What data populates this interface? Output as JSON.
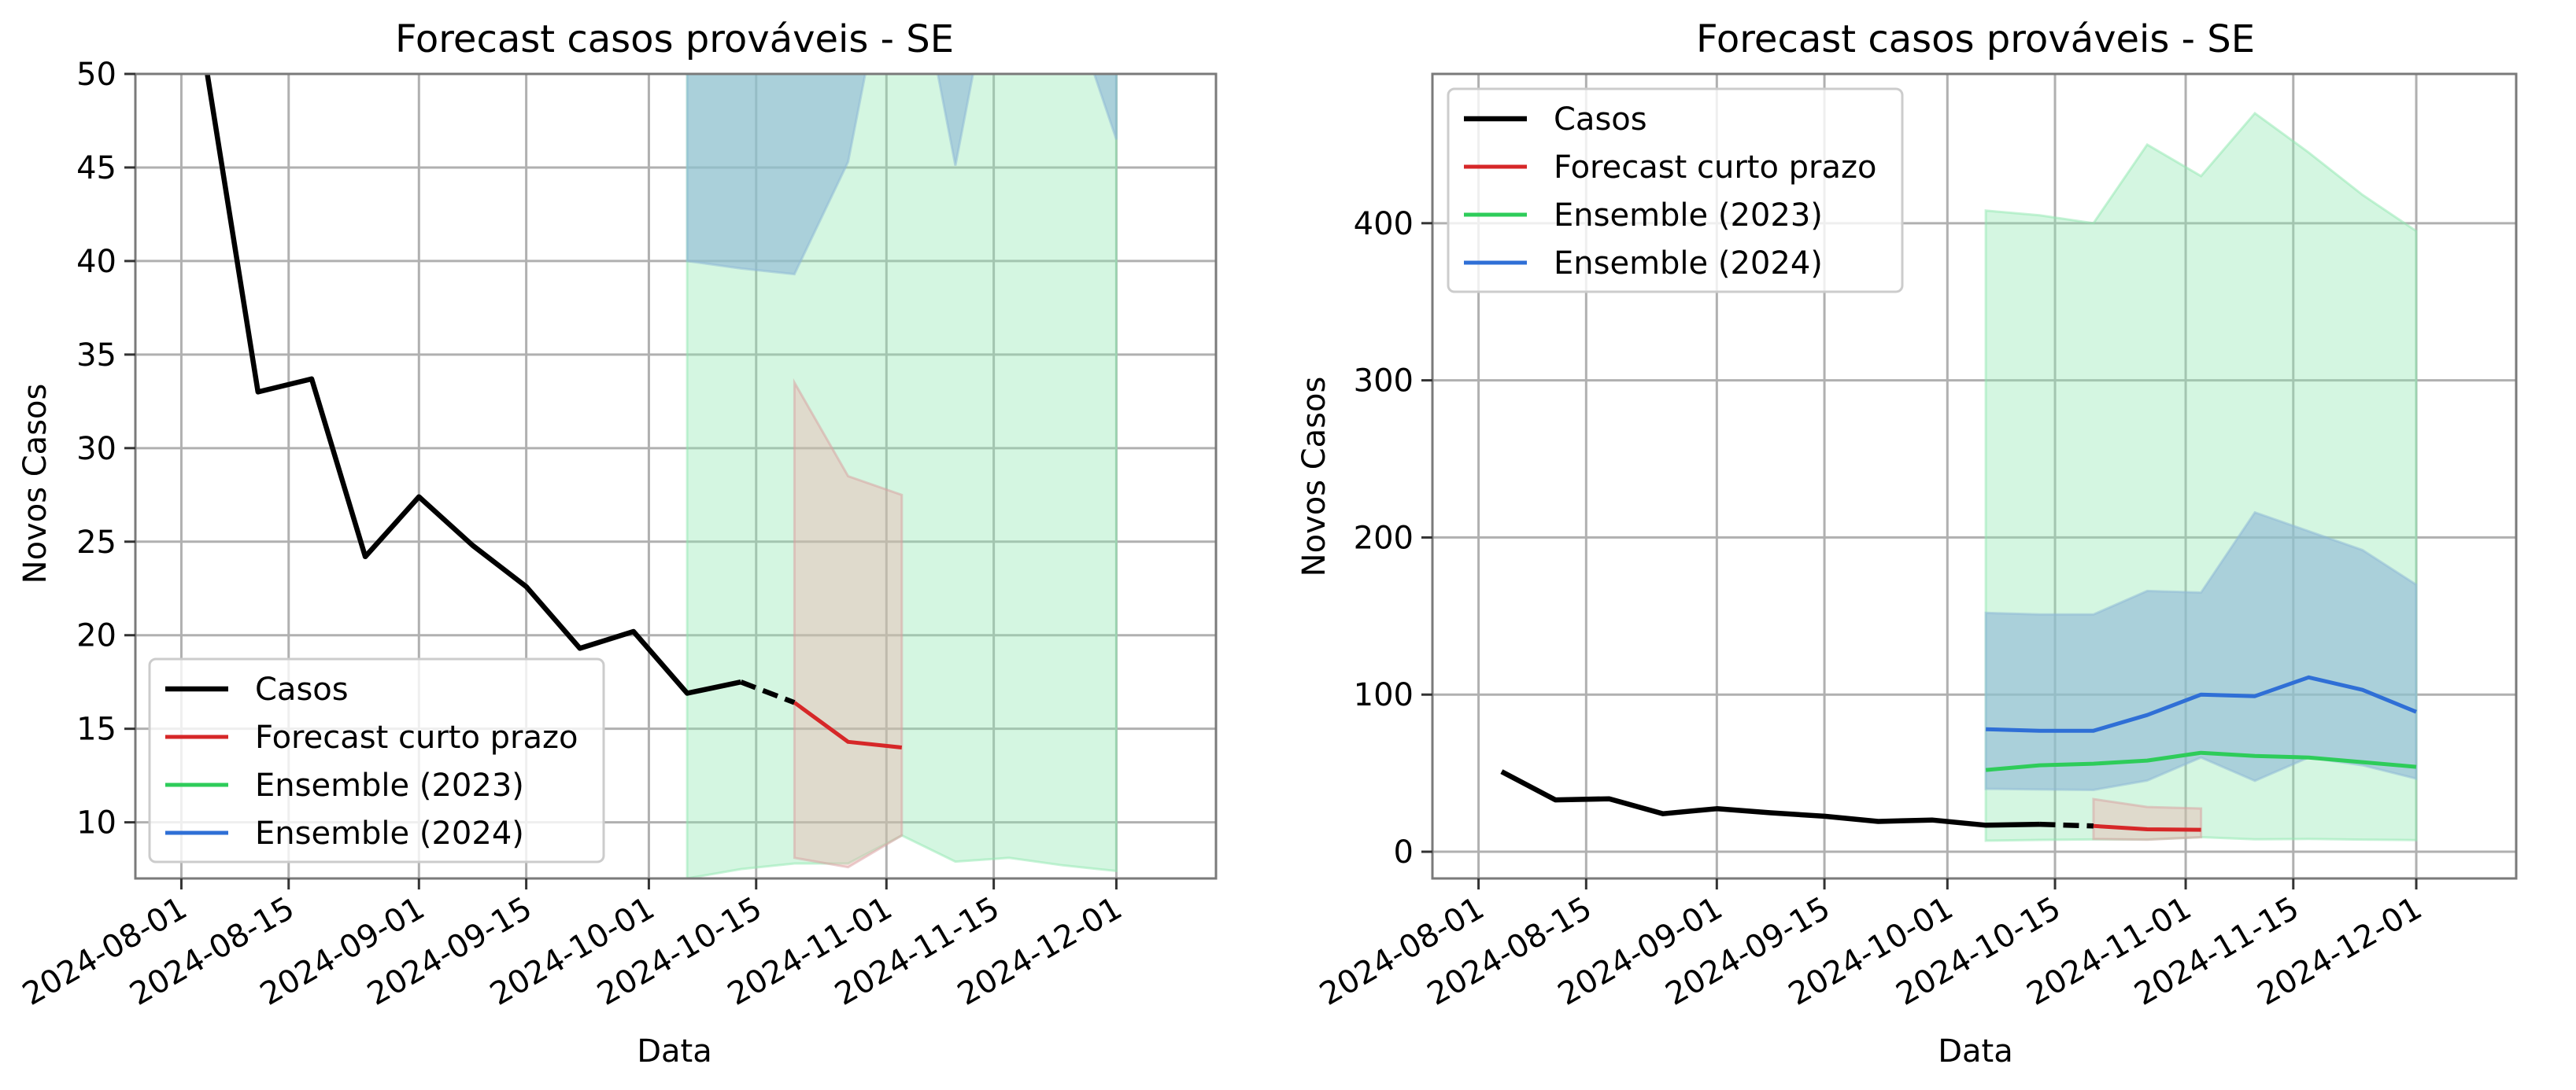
{
  "colors": {
    "casos": "#000000",
    "forecast": "#d62728",
    "ensemble2023": "#2ecc5a",
    "ensemble2024": "#2f6fd6",
    "band2023": "#8fe8b0",
    "band2024": "#8db7d6",
    "bandForecast": "#f4a6a6"
  },
  "chart_data": [
    {
      "type": "line",
      "title": "Forecast casos prováveis - SE",
      "xlabel": "Data",
      "ylabel": "Novos Casos",
      "xlim": [
        "2024-07-26",
        "2024-12-14"
      ],
      "ylim": [
        7,
        50
      ],
      "x_ticks": [
        "2024-08-01",
        "2024-08-15",
        "2024-09-01",
        "2024-09-15",
        "2024-10-01",
        "2024-10-15",
        "2024-11-01",
        "2024-11-15",
        "2024-12-01"
      ],
      "y_ticks": [
        10,
        15,
        20,
        25,
        30,
        35,
        40,
        45,
        50
      ],
      "grid": true,
      "legend": "lower-left",
      "legend_entries": [
        "Casos",
        "Forecast curto prazo",
        "Ensemble (2023)",
        "Ensemble (2024)"
      ]
    },
    {
      "type": "line",
      "title": "Forecast casos prováveis - SE",
      "xlabel": "Data",
      "ylabel": "Novos Casos",
      "xlim": [
        "2024-07-26",
        "2024-12-14"
      ],
      "ylim": [
        -17,
        495
      ],
      "x_ticks": [
        "2024-08-01",
        "2024-08-15",
        "2024-09-01",
        "2024-09-15",
        "2024-10-01",
        "2024-10-15",
        "2024-11-01",
        "2024-11-15",
        "2024-12-01"
      ],
      "y_ticks": [
        0,
        100,
        200,
        300,
        400
      ],
      "grid": true,
      "legend": "upper-left",
      "legend_entries": [
        "Casos",
        "Forecast curto prazo",
        "Ensemble (2023)",
        "Ensemble (2024)"
      ]
    }
  ],
  "series": {
    "casos": [
      {
        "x": "2024-08-04",
        "y": 51
      },
      {
        "x": "2024-08-11",
        "y": 33
      },
      {
        "x": "2024-08-18",
        "y": 33.7
      },
      {
        "x": "2024-08-25",
        "y": 24.2
      },
      {
        "x": "2024-09-01",
        "y": 27.4
      },
      {
        "x": "2024-09-08",
        "y": 24.8
      },
      {
        "x": "2024-09-15",
        "y": 22.6
      },
      {
        "x": "2024-09-22",
        "y": 19.3
      },
      {
        "x": "2024-09-29",
        "y": 20.2
      },
      {
        "x": "2024-10-06",
        "y": 16.9
      },
      {
        "x": "2024-10-13",
        "y": 17.5
      }
    ],
    "casos_dashed": [
      {
        "x": "2024-10-13",
        "y": 17.5
      },
      {
        "x": "2024-10-20",
        "y": 16.4
      }
    ],
    "forecast": [
      {
        "x": "2024-10-20",
        "y": 16.4,
        "lo": 8.1,
        "hi": 33.5
      },
      {
        "x": "2024-10-27",
        "y": 14.3,
        "lo": 7.6,
        "hi": 28.5
      },
      {
        "x": "2024-11-03",
        "y": 14.0,
        "lo": 9.3,
        "hi": 27.5
      }
    ],
    "ensemble2023": [
      {
        "x": "2024-10-06",
        "y": 52,
        "lo": 7,
        "hi": 408
      },
      {
        "x": "2024-10-13",
        "y": 55,
        "lo": 7.5,
        "hi": 405
      },
      {
        "x": "2024-10-20",
        "y": 56,
        "lo": 7.8,
        "hi": 400
      },
      {
        "x": "2024-10-27",
        "y": 58,
        "lo": 7.8,
        "hi": 450
      },
      {
        "x": "2024-11-03",
        "y": 63,
        "lo": 9.3,
        "hi": 430
      },
      {
        "x": "2024-11-10",
        "y": 61,
        "lo": 7.9,
        "hi": 470
      },
      {
        "x": "2024-11-17",
        "y": 60,
        "lo": 8.1,
        "hi": 445
      },
      {
        "x": "2024-11-24",
        "y": 57,
        "lo": 7.7,
        "hi": 418
      },
      {
        "x": "2024-12-01",
        "y": 54,
        "lo": 7.4,
        "hi": 395
      }
    ],
    "ensemble2024": [
      {
        "x": "2024-10-06",
        "y": 78,
        "lo": 40,
        "hi": 152
      },
      {
        "x": "2024-10-13",
        "y": 77,
        "lo": 39.6,
        "hi": 151
      },
      {
        "x": "2024-10-20",
        "y": 77,
        "lo": 39.3,
        "hi": 151
      },
      {
        "x": "2024-10-27",
        "y": 87,
        "lo": 45.3,
        "hi": 166
      },
      {
        "x": "2024-11-03",
        "y": 100,
        "lo": 60,
        "hi": 165
      },
      {
        "x": "2024-11-10",
        "y": 99,
        "lo": 45.1,
        "hi": 216
      },
      {
        "x": "2024-11-17",
        "y": 111,
        "lo": 60,
        "hi": 204
      },
      {
        "x": "2024-11-24",
        "y": 103,
        "lo": 55,
        "hi": 192
      },
      {
        "x": "2024-12-01",
        "y": 89,
        "lo": 46.5,
        "hi": 170
      }
    ]
  }
}
